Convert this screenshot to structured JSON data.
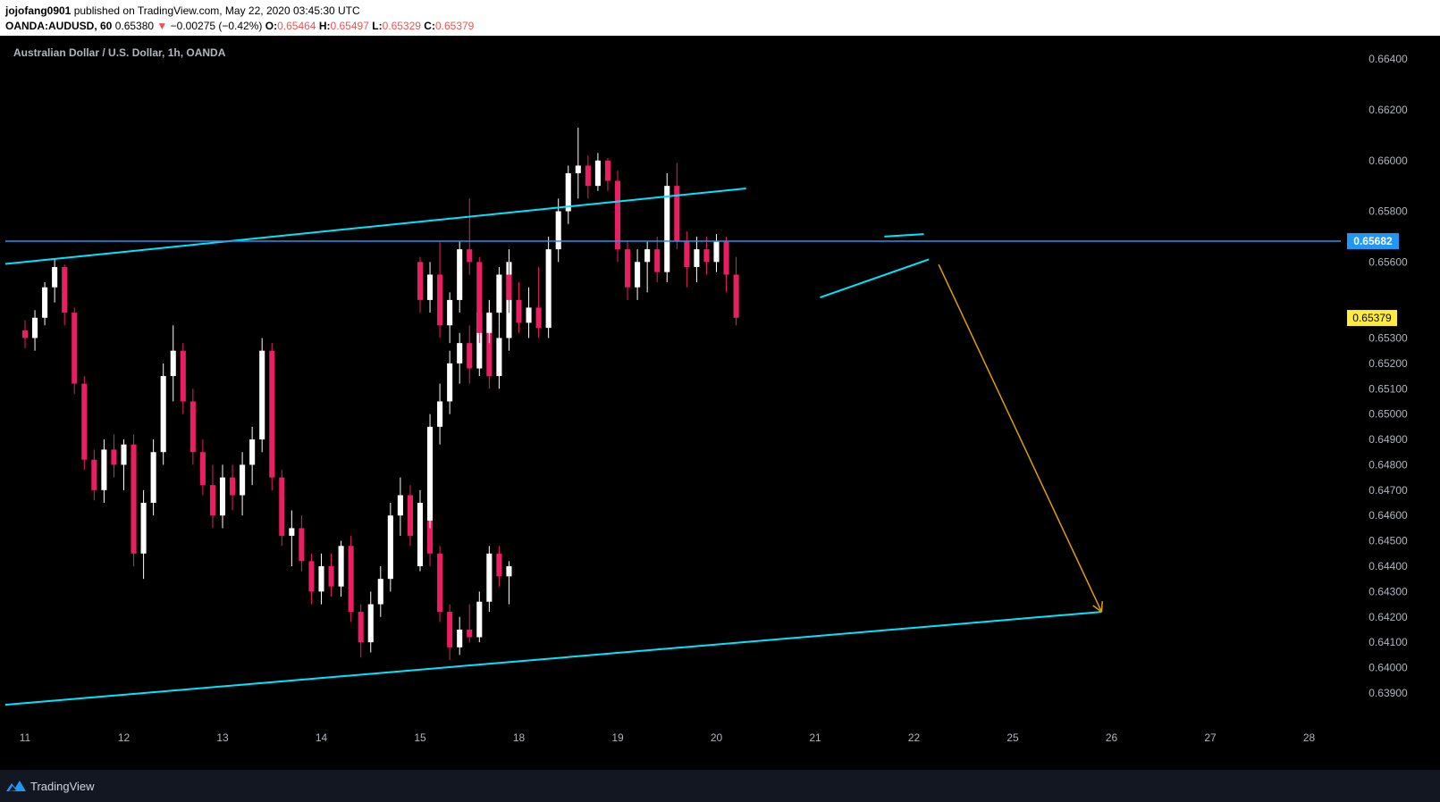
{
  "header": {
    "author": "jojofang0901",
    "published": "published on TradingView.com, May 22, 2020 03:45:30 UTC",
    "symbol": "OANDA:AUDUSD, 60",
    "last": "0.65380",
    "change_arrow": "▼",
    "change": "−0.00275 (−0.42%)",
    "o_label": "O:",
    "o_value": "0.65464",
    "h_label": "H:",
    "h_value": "0.65497",
    "l_label": "L:",
    "l_value": "0.65329",
    "c_label": "C:",
    "c_value": "0.65379"
  },
  "footer": {
    "brand": "TradingView"
  },
  "colors": {
    "up": "#ffffff",
    "down": "#e91e63",
    "channel": "#00e5ff",
    "level": "#2196f3",
    "projection": "#e0a000",
    "last_badge": "#ffeb3b"
  },
  "chart_data": {
    "type": "candlestick",
    "title": "Australian Dollar / U.S. Dollar, 1h, OANDA",
    "x_ticks": [
      "11",
      "12",
      "13",
      "14",
      "15",
      "18",
      "19",
      "20",
      "21",
      "22",
      "25",
      "26",
      "27",
      "28"
    ],
    "y_ticks": [
      "0.66400",
      "0.66200",
      "0.66000",
      "0.65800",
      "0.65600",
      "0.65300",
      "0.65200",
      "0.65100",
      "0.65000",
      "0.64900",
      "0.64800",
      "0.64700",
      "0.64600",
      "0.64500",
      "0.64400",
      "0.64300",
      "0.64200",
      "0.64100",
      "0.64000",
      "0.63900"
    ],
    "ylim": [
      0.6378,
      0.6645
    ],
    "horizontal_level": {
      "value": 0.65682,
      "label": "0.65682"
    },
    "last_price": {
      "value": 0.65379,
      "label": "0.65379"
    },
    "channel_upper": [
      [
        11.0,
        0.656
      ],
      [
        20.3,
        0.6589
      ]
    ],
    "channel_lower": [
      [
        11.0,
        0.6386
      ],
      [
        25.9,
        0.6422
      ]
    ],
    "wedge_upper": [
      [
        21.7,
        0.657
      ],
      [
        22.1,
        0.6571
      ]
    ],
    "wedge_lower": [
      [
        21.05,
        0.6546
      ],
      [
        22.15,
        0.6561
      ]
    ],
    "projection": [
      [
        22.25,
        0.6559
      ],
      [
        25.9,
        0.6422
      ]
    ],
    "candles": [
      {
        "t": 11.0,
        "o": 0.6533,
        "h": 0.6537,
        "l": 0.6526,
        "c": 0.653
      },
      {
        "t": 11.1,
        "o": 0.653,
        "h": 0.6541,
        "l": 0.6525,
        "c": 0.6538
      },
      {
        "t": 11.2,
        "o": 0.6538,
        "h": 0.6552,
        "l": 0.6535,
        "c": 0.655
      },
      {
        "t": 11.3,
        "o": 0.655,
        "h": 0.6561,
        "l": 0.6544,
        "c": 0.6558
      },
      {
        "t": 11.4,
        "o": 0.6558,
        "h": 0.6559,
        "l": 0.6535,
        "c": 0.654
      },
      {
        "t": 11.5,
        "o": 0.654,
        "h": 0.6542,
        "l": 0.6508,
        "c": 0.6512
      },
      {
        "t": 11.6,
        "o": 0.6512,
        "h": 0.6515,
        "l": 0.6478,
        "c": 0.6482
      },
      {
        "t": 11.7,
        "o": 0.6482,
        "h": 0.6486,
        "l": 0.6466,
        "c": 0.647
      },
      {
        "t": 11.8,
        "o": 0.647,
        "h": 0.649,
        "l": 0.6465,
        "c": 0.6486
      },
      {
        "t": 11.9,
        "o": 0.6486,
        "h": 0.6492,
        "l": 0.6475,
        "c": 0.648
      },
      {
        "t": 12.0,
        "o": 0.648,
        "h": 0.649,
        "l": 0.647,
        "c": 0.6488
      },
      {
        "t": 12.1,
        "o": 0.6488,
        "h": 0.6492,
        "l": 0.644,
        "c": 0.6445
      },
      {
        "t": 12.2,
        "o": 0.6445,
        "h": 0.647,
        "l": 0.6435,
        "c": 0.6465
      },
      {
        "t": 12.3,
        "o": 0.6465,
        "h": 0.649,
        "l": 0.646,
        "c": 0.6485
      },
      {
        "t": 12.4,
        "o": 0.6485,
        "h": 0.652,
        "l": 0.648,
        "c": 0.6515
      },
      {
        "t": 12.5,
        "o": 0.6515,
        "h": 0.6535,
        "l": 0.6505,
        "c": 0.6525
      },
      {
        "t": 12.6,
        "o": 0.6525,
        "h": 0.6528,
        "l": 0.65,
        "c": 0.6505
      },
      {
        "t": 12.7,
        "o": 0.6505,
        "h": 0.651,
        "l": 0.648,
        "c": 0.6485
      },
      {
        "t": 12.8,
        "o": 0.6485,
        "h": 0.649,
        "l": 0.6468,
        "c": 0.6472
      },
      {
        "t": 12.9,
        "o": 0.6472,
        "h": 0.648,
        "l": 0.6455,
        "c": 0.646
      },
      {
        "t": 13.0,
        "o": 0.646,
        "h": 0.648,
        "l": 0.6455,
        "c": 0.6475
      },
      {
        "t": 13.1,
        "o": 0.6475,
        "h": 0.648,
        "l": 0.6462,
        "c": 0.6468
      },
      {
        "t": 13.2,
        "o": 0.6468,
        "h": 0.6485,
        "l": 0.646,
        "c": 0.648
      },
      {
        "t": 13.3,
        "o": 0.648,
        "h": 0.6495,
        "l": 0.6472,
        "c": 0.649
      },
      {
        "t": 13.4,
        "o": 0.649,
        "h": 0.653,
        "l": 0.6485,
        "c": 0.6525
      },
      {
        "t": 13.5,
        "o": 0.6525,
        "h": 0.6528,
        "l": 0.647,
        "c": 0.6475
      },
      {
        "t": 13.6,
        "o": 0.6475,
        "h": 0.6478,
        "l": 0.6448,
        "c": 0.6452
      },
      {
        "t": 13.7,
        "o": 0.6452,
        "h": 0.6462,
        "l": 0.644,
        "c": 0.6455
      },
      {
        "t": 13.8,
        "o": 0.6455,
        "h": 0.646,
        "l": 0.6438,
        "c": 0.6442
      },
      {
        "t": 13.9,
        "o": 0.6442,
        "h": 0.6445,
        "l": 0.6425,
        "c": 0.643
      },
      {
        "t": 14.0,
        "o": 0.643,
        "h": 0.6445,
        "l": 0.6425,
        "c": 0.644
      },
      {
        "t": 14.1,
        "o": 0.644,
        "h": 0.6445,
        "l": 0.6428,
        "c": 0.6432
      },
      {
        "t": 14.2,
        "o": 0.6432,
        "h": 0.645,
        "l": 0.6428,
        "c": 0.6448
      },
      {
        "t": 14.3,
        "o": 0.6448,
        "h": 0.6452,
        "l": 0.6418,
        "c": 0.6422
      },
      {
        "t": 14.4,
        "o": 0.6422,
        "h": 0.6425,
        "l": 0.6404,
        "c": 0.641
      },
      {
        "t": 14.5,
        "o": 0.641,
        "h": 0.643,
        "l": 0.6406,
        "c": 0.6425
      },
      {
        "t": 14.6,
        "o": 0.6425,
        "h": 0.644,
        "l": 0.642,
        "c": 0.6435
      },
      {
        "t": 14.7,
        "o": 0.6435,
        "h": 0.6465,
        "l": 0.643,
        "c": 0.646
      },
      {
        "t": 14.8,
        "o": 0.646,
        "h": 0.6475,
        "l": 0.6452,
        "c": 0.6468
      },
      {
        "t": 14.9,
        "o": 0.6468,
        "h": 0.6472,
        "l": 0.6448,
        "c": 0.6452
      },
      {
        "t": 15.0,
        "o": 0.6452,
        "h": 0.647,
        "l": 0.6445,
        "c": 0.6465
      },
      {
        "t": 15.1,
        "o": 0.6465,
        "h": 0.6468,
        "l": 0.644,
        "c": 0.6445
      },
      {
        "t": 15.2,
        "o": 0.6445,
        "h": 0.6448,
        "l": 0.6418,
        "c": 0.6422
      },
      {
        "t": 15.3,
        "o": 0.6422,
        "h": 0.6425,
        "l": 0.6403,
        "c": 0.6408
      },
      {
        "t": 15.4,
        "o": 0.6408,
        "h": 0.642,
        "l": 0.6405,
        "c": 0.6415
      },
      {
        "t": 15.5,
        "o": 0.6415,
        "h": 0.6425,
        "l": 0.641,
        "c": 0.6412
      },
      {
        "t": 15.6,
        "o": 0.6412,
        "h": 0.643,
        "l": 0.641,
        "c": 0.6426
      },
      {
        "t": 15.7,
        "o": 0.6426,
        "h": 0.6448,
        "l": 0.6422,
        "c": 0.6445
      },
      {
        "t": 15.8,
        "o": 0.6445,
        "h": 0.6448,
        "l": 0.6432,
        "c": 0.6436
      },
      {
        "t": 15.9,
        "o": 0.6436,
        "h": 0.6442,
        "l": 0.6425,
        "c": 0.644
      },
      {
        "t": 16.0,
        "o": 0.644,
        "h": 0.6462,
        "l": 0.6438,
        "c": 0.6458
      },
      {
        "t": 16.1,
        "o": 0.6458,
        "h": 0.65,
        "l": 0.6455,
        "c": 0.6495
      },
      {
        "t": 16.2,
        "o": 0.6495,
        "h": 0.6512,
        "l": 0.6488,
        "c": 0.6505
      },
      {
        "t": 16.3,
        "o": 0.6505,
        "h": 0.6525,
        "l": 0.65,
        "c": 0.652
      },
      {
        "t": 16.4,
        "o": 0.652,
        "h": 0.6532,
        "l": 0.6512,
        "c": 0.6528
      },
      {
        "t": 16.5,
        "o": 0.6528,
        "h": 0.6535,
        "l": 0.6512,
        "c": 0.6518
      },
      {
        "t": 16.6,
        "o": 0.6518,
        "h": 0.6545,
        "l": 0.6515,
        "c": 0.654
      },
      {
        "t": 16.7,
        "o": 0.654,
        "h": 0.6545,
        "l": 0.651,
        "c": 0.6515
      },
      {
        "t": 16.8,
        "o": 0.6515,
        "h": 0.6535,
        "l": 0.651,
        "c": 0.653
      },
      {
        "t": 16.9,
        "o": 0.653,
        "h": 0.6565,
        "l": 0.6525,
        "c": 0.656
      },
      {
        "t": 17.0,
        "o": 0.656,
        "h": 0.6562,
        "l": 0.654,
        "c": 0.6545
      },
      {
        "t": 17.1,
        "o": 0.6545,
        "h": 0.656,
        "l": 0.654,
        "c": 0.6555
      },
      {
        "t": 17.2,
        "o": 0.6555,
        "h": 0.6568,
        "l": 0.653,
        "c": 0.6535
      },
      {
        "t": 17.3,
        "o": 0.6535,
        "h": 0.6548,
        "l": 0.6528,
        "c": 0.6545
      },
      {
        "t": 17.4,
        "o": 0.6545,
        "h": 0.6568,
        "l": 0.654,
        "c": 0.6565
      },
      {
        "t": 17.5,
        "o": 0.6565,
        "h": 0.6585,
        "l": 0.6555,
        "c": 0.656
      },
      {
        "t": 17.6,
        "o": 0.656,
        "h": 0.6562,
        "l": 0.6528,
        "c": 0.6532
      },
      {
        "t": 17.7,
        "o": 0.6532,
        "h": 0.6545,
        "l": 0.6528,
        "c": 0.654
      },
      {
        "t": 17.8,
        "o": 0.654,
        "h": 0.6558,
        "l": 0.6535,
        "c": 0.6555
      },
      {
        "t": 17.9,
        "o": 0.6555,
        "h": 0.656,
        "l": 0.654,
        "c": 0.6545
      },
      {
        "t": 18.0,
        "o": 0.6545,
        "h": 0.6552,
        "l": 0.6532,
        "c": 0.6536
      },
      {
        "t": 18.1,
        "o": 0.6536,
        "h": 0.655,
        "l": 0.653,
        "c": 0.6542
      },
      {
        "t": 18.2,
        "o": 0.6542,
        "h": 0.6558,
        "l": 0.653,
        "c": 0.6534
      },
      {
        "t": 18.3,
        "o": 0.6534,
        "h": 0.657,
        "l": 0.653,
        "c": 0.6565
      },
      {
        "t": 18.4,
        "o": 0.6565,
        "h": 0.6585,
        "l": 0.656,
        "c": 0.658
      },
      {
        "t": 18.5,
        "o": 0.658,
        "h": 0.6598,
        "l": 0.6575,
        "c": 0.6595
      },
      {
        "t": 18.6,
        "o": 0.6595,
        "h": 0.6613,
        "l": 0.6585,
        "c": 0.6598
      },
      {
        "t": 18.7,
        "o": 0.6598,
        "h": 0.6602,
        "l": 0.6585,
        "c": 0.659
      },
      {
        "t": 18.8,
        "o": 0.659,
        "h": 0.6603,
        "l": 0.6588,
        "c": 0.66
      },
      {
        "t": 18.9,
        "o": 0.66,
        "h": 0.6601,
        "l": 0.6588,
        "c": 0.6592
      },
      {
        "t": 19.0,
        "o": 0.6592,
        "h": 0.6596,
        "l": 0.656,
        "c": 0.6565
      },
      {
        "t": 19.1,
        "o": 0.6565,
        "h": 0.6568,
        "l": 0.6545,
        "c": 0.655
      },
      {
        "t": 19.2,
        "o": 0.655,
        "h": 0.6565,
        "l": 0.6545,
        "c": 0.656
      },
      {
        "t": 19.3,
        "o": 0.656,
        "h": 0.6568,
        "l": 0.6548,
        "c": 0.6565
      },
      {
        "t": 19.4,
        "o": 0.6565,
        "h": 0.657,
        "l": 0.6552,
        "c": 0.6556
      },
      {
        "t": 19.5,
        "o": 0.6556,
        "h": 0.6595,
        "l": 0.6552,
        "c": 0.659
      },
      {
        "t": 19.6,
        "o": 0.659,
        "h": 0.6599,
        "l": 0.6565,
        "c": 0.6568
      },
      {
        "t": 19.7,
        "o": 0.6568,
        "h": 0.6572,
        "l": 0.655,
        "c": 0.6558
      },
      {
        "t": 19.8,
        "o": 0.6558,
        "h": 0.657,
        "l": 0.6552,
        "c": 0.6565
      },
      {
        "t": 19.9,
        "o": 0.6565,
        "h": 0.657,
        "l": 0.6555,
        "c": 0.656
      },
      {
        "t": 20.0,
        "o": 0.656,
        "h": 0.6571,
        "l": 0.6556,
        "c": 0.6568
      },
      {
        "t": 20.1,
        "o": 0.6568,
        "h": 0.657,
        "l": 0.6548,
        "c": 0.6555
      },
      {
        "t": 20.2,
        "o": 0.6555,
        "h": 0.6562,
        "l": 0.6535,
        "c": 0.6538
      }
    ]
  }
}
